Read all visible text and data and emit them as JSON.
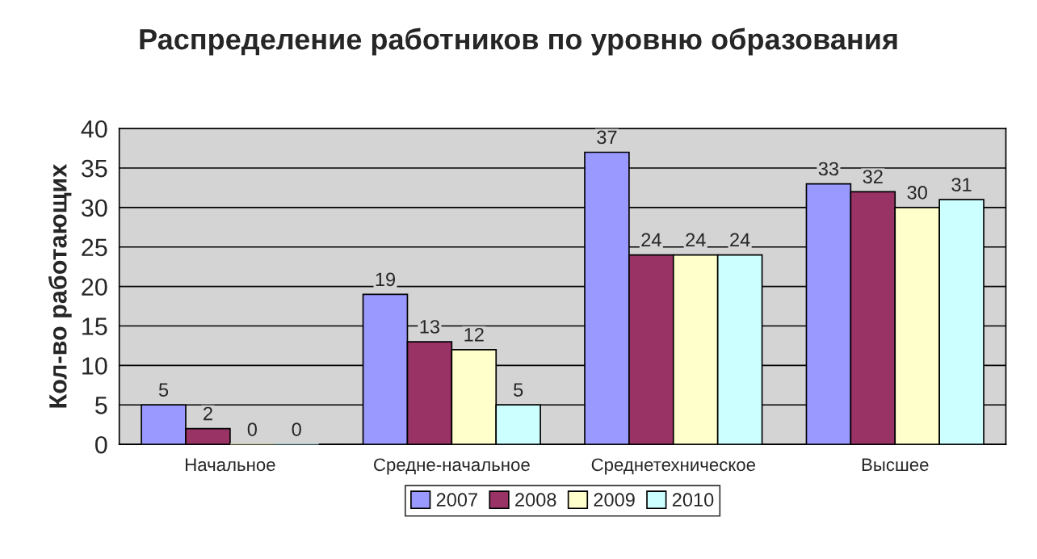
{
  "chart_data": {
    "type": "bar",
    "title": "Распределение работников по уровню образования",
    "ylabel": "Кол-во работающих",
    "categories": [
      "Начальное",
      "Средне-начальное",
      "Среднетехническое",
      "Высшее"
    ],
    "series": [
      {
        "name": "2007",
        "color": "#9999ff",
        "values": [
          5,
          19,
          37,
          33
        ]
      },
      {
        "name": "2008",
        "color": "#993366",
        "values": [
          2,
          13,
          24,
          32
        ]
      },
      {
        "name": "2009",
        "color": "#ffffcc",
        "values": [
          0,
          12,
          24,
          30
        ]
      },
      {
        "name": "2010",
        "color": "#ccffff",
        "values": [
          0,
          5,
          24,
          31
        ]
      }
    ],
    "ylim": [
      0,
      40
    ],
    "yticks": [
      0,
      5,
      10,
      15,
      20,
      25,
      30,
      35,
      40
    ],
    "grid": "y",
    "legend": "bottom",
    "data_labels": true
  }
}
